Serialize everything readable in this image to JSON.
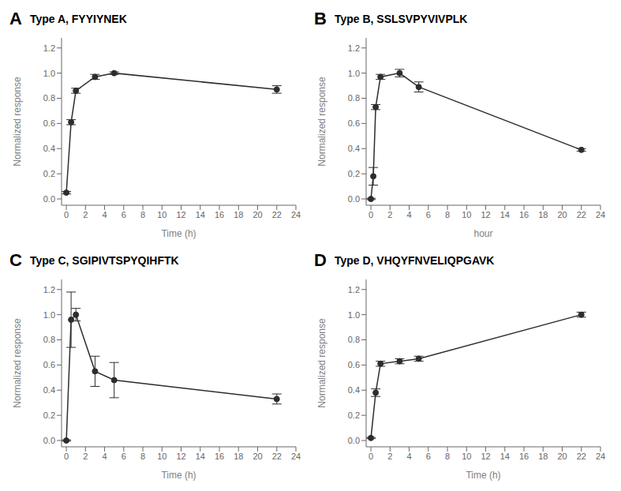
{
  "chart_data": [
    {
      "type": "line",
      "label": "A",
      "title": "Type A, FYYIYNEK",
      "xlabel": "Time (h)",
      "ylabel": "Normalized response",
      "x": [
        0,
        0.5,
        1,
        3,
        5,
        22
      ],
      "values": [
        0.05,
        0.61,
        0.86,
        0.97,
        1.0,
        0.87
      ],
      "yerr": [
        0.01,
        0.02,
        0.02,
        0.02,
        0.01,
        0.03
      ],
      "color": "#2d2d2d",
      "marker": "circle",
      "grid": false,
      "xlim": [
        -0.5,
        24
      ],
      "xticks": [
        0,
        2,
        4,
        6,
        8,
        10,
        12,
        14,
        16,
        18,
        20,
        22,
        24
      ],
      "ylim": [
        -0.05,
        1.28
      ],
      "yticks": [
        {
          "value": 0.0,
          "label": "0.0"
        },
        {
          "value": 0.2,
          "label": "0.2"
        },
        {
          "value": 0.4,
          "label": "0.4"
        },
        {
          "value": 0.6,
          "label": "0.6"
        },
        {
          "value": 0.8,
          "label": "0.8"
        },
        {
          "value": 1.0,
          "label": "1.0"
        },
        {
          "value": 1.2,
          "label": "1.2"
        }
      ]
    },
    {
      "type": "line",
      "label": "B",
      "title": "Type B, SSLSVPYVIVPLK",
      "xlabel": "hour",
      "ylabel": "Normalized response",
      "x": [
        0,
        0.25,
        0.5,
        1,
        3,
        5,
        22
      ],
      "values": [
        0.0,
        0.18,
        0.73,
        0.97,
        1.0,
        0.89,
        0.39
      ],
      "yerr": [
        0.005,
        0.07,
        0.02,
        0.02,
        0.03,
        0.04,
        0.01
      ],
      "color": "#2d2d2d",
      "marker": "circle",
      "grid": false,
      "xlim": [
        -0.5,
        24
      ],
      "xticks": [
        0,
        2,
        4,
        6,
        8,
        10,
        12,
        14,
        16,
        18,
        20,
        22,
        24
      ],
      "ylim": [
        -0.05,
        1.28
      ],
      "yticks": [
        {
          "value": 0.0,
          "label": "0.0"
        },
        {
          "value": 0.2,
          "label": "0.2"
        },
        {
          "value": 0.4,
          "label": "0.4"
        },
        {
          "value": 0.6,
          "label": "0.6"
        },
        {
          "value": 0.8,
          "label": "0.8"
        },
        {
          "value": 1.0,
          "label": "1.0"
        },
        {
          "value": 1.2,
          "label": "1.2"
        }
      ]
    },
    {
      "type": "line",
      "label": "C",
      "title": "Type C, SGIPIVTSPYQIHFTK",
      "xlabel": "Time (h)",
      "ylabel": "Normalized response",
      "x": [
        0,
        0.5,
        1,
        3,
        5,
        22
      ],
      "values": [
        0.0,
        0.96,
        1.0,
        0.55,
        0.48,
        0.33
      ],
      "yerr": [
        0.005,
        0.22,
        0.05,
        0.12,
        0.14,
        0.04
      ],
      "color": "#2d2d2d",
      "marker": "circle",
      "grid": false,
      "xlim": [
        -0.5,
        24
      ],
      "xticks": [
        0,
        2,
        4,
        6,
        8,
        10,
        12,
        14,
        16,
        18,
        20,
        22,
        24
      ],
      "ylim": [
        -0.05,
        1.28
      ],
      "yticks": [
        {
          "value": 0.0,
          "label": "0.0"
        },
        {
          "value": 0.2,
          "label": "0.2"
        },
        {
          "value": 0.4,
          "label": "0.4"
        },
        {
          "value": 0.6,
          "label": "0.6"
        },
        {
          "value": 0.8,
          "label": "0.8"
        },
        {
          "value": 1.0,
          "label": "1.0"
        },
        {
          "value": 1.2,
          "label": "1.2"
        }
      ]
    },
    {
      "type": "line",
      "label": "D",
      "title": "Type D, VHQYFNVELIQPGAVK",
      "xlabel": "Time (h)",
      "ylabel": "Normalized response",
      "x": [
        0,
        0.5,
        1,
        3,
        5,
        22
      ],
      "values": [
        0.02,
        0.38,
        0.61,
        0.63,
        0.65,
        1.0
      ],
      "yerr": [
        0.005,
        0.03,
        0.02,
        0.02,
        0.02,
        0.02
      ],
      "color": "#2d2d2d",
      "marker": "circle",
      "grid": false,
      "xlim": [
        -0.5,
        24
      ],
      "xticks": [
        0,
        2,
        4,
        6,
        8,
        10,
        12,
        14,
        16,
        18,
        20,
        22,
        24
      ],
      "ylim": [
        -0.05,
        1.28
      ],
      "yticks": [
        {
          "value": 0.0,
          "label": "0.0"
        },
        {
          "value": 0.2,
          "label": "0.2"
        },
        {
          "value": 0.4,
          "label": "0.4"
        },
        {
          "value": 0.6,
          "label": "0.6"
        },
        {
          "value": 0.8,
          "label": "0.8"
        },
        {
          "value": 1.0,
          "label": "1.0"
        },
        {
          "value": 1.2,
          "label": "1.2"
        }
      ]
    }
  ]
}
